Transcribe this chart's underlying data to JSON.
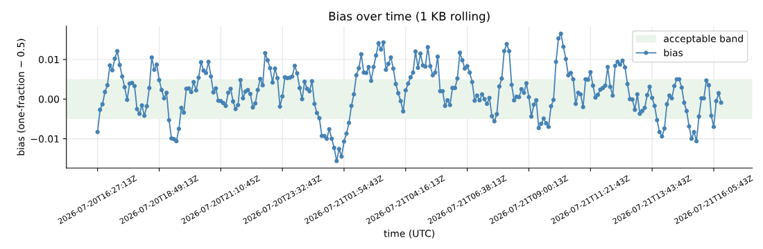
{
  "chart_data": {
    "type": "line",
    "title": "Bias over time (1 KB rolling)",
    "xlabel": "time (UTC)",
    "ylabel": "bias (one-fraction − 0.5)",
    "categories": [
      "2026-07-20T16:27:13Z",
      null,
      null,
      null,
      null,
      null,
      null,
      null,
      null,
      null,
      null,
      null,
      null,
      null,
      null,
      null,
      null,
      null,
      null,
      null,
      null,
      null,
      null,
      null,
      null,
      "2026-07-20T18:49:13Z",
      null,
      null,
      null,
      null,
      null,
      null,
      null,
      null,
      null,
      null,
      null,
      null,
      null,
      null,
      null,
      null,
      null,
      null,
      null,
      null,
      null,
      null,
      null,
      null,
      "2026-07-20T21:10:45Z",
      null,
      null,
      null,
      null,
      null,
      null,
      null,
      null,
      null,
      null,
      null,
      null,
      null,
      null,
      null,
      null,
      null,
      null,
      null,
      null,
      null,
      null,
      null,
      null,
      "2026-07-20T23:32:43Z",
      null,
      null,
      null,
      null,
      null,
      null,
      null,
      null,
      null,
      null,
      null,
      null,
      null,
      null,
      null,
      null,
      null,
      null,
      null,
      null,
      null,
      null,
      null,
      null,
      "2026-07-21T01:54:43Z",
      null,
      null,
      null,
      null,
      null,
      null,
      null,
      null,
      null,
      null,
      null,
      null,
      null,
      null,
      null,
      null,
      null,
      null,
      null,
      null,
      null,
      null,
      null,
      null,
      "2026-07-21T04:16:13Z",
      null,
      null,
      null,
      null,
      null,
      null,
      null,
      null,
      null,
      null,
      null,
      null,
      null,
      null,
      null,
      null,
      null,
      null,
      null,
      null,
      null,
      null,
      null,
      null,
      "2026-07-21T06:38:13Z",
      null,
      null,
      null,
      null,
      null,
      null,
      null,
      null,
      null,
      null,
      null,
      null,
      null,
      null,
      null,
      null,
      null,
      null,
      null,
      null,
      null,
      null,
      null,
      null,
      "2026-07-21T09:00:13Z",
      null,
      null,
      null,
      null,
      null,
      null,
      null,
      null,
      null,
      null,
      null,
      null,
      null,
      null,
      null,
      null,
      null,
      null,
      null,
      null,
      null,
      null,
      null,
      null,
      "2026-07-21T11:21:43Z",
      null,
      null,
      null,
      null,
      null,
      null,
      null,
      null,
      null,
      null,
      null,
      null,
      null,
      null,
      null,
      null,
      null,
      null,
      null,
      null,
      null,
      null,
      null,
      null,
      "2026-07-21T13:43:43Z",
      null,
      null,
      null,
      null,
      null,
      null,
      null,
      null,
      null,
      null,
      null,
      null,
      null,
      null,
      null,
      null,
      null,
      null,
      null,
      null,
      null,
      null,
      null,
      null,
      "2026-07-21T16:05:43Z",
      null,
      null,
      null
    ],
    "series": [
      {
        "name": "bias",
        "color": "#4682b4",
        "marker": "circle",
        "line_style": "solid",
        "values": [
          -0.0083,
          -0.0027,
          -0.0013,
          0.0018,
          0.0035,
          0.0085,
          0.0073,
          0.0102,
          0.0121,
          0.0086,
          0.0057,
          0.003,
          -0.0002,
          0.0039,
          0.0041,
          0.0033,
          -0.0025,
          -0.0037,
          -0.0016,
          -0.0042,
          -0.0018,
          0.0028,
          0.0105,
          0.0074,
          0.0087,
          0.0048,
          0.0023,
          0.0002,
          0.0016,
          -0.0053,
          -0.0099,
          -0.0101,
          -0.0106,
          -0.0075,
          -0.0022,
          -0.0034,
          0.0026,
          0.0027,
          0.0018,
          0.0043,
          0.0022,
          0.0054,
          0.0093,
          0.0072,
          0.0066,
          0.0094,
          0.0057,
          0.0017,
          0.0027,
          -0.0004,
          -0.0005,
          -0.001,
          -0.0017,
          0.0016,
          0.0026,
          -0.0006,
          -0.0025,
          -0.0015,
          0.0048,
          0.0002,
          0.0019,
          0.0023,
          0.0013,
          -0.0021,
          -0.0011,
          0.0023,
          0.0051,
          0.0035,
          0.0116,
          0.0098,
          0.0078,
          0.0042,
          0.0077,
          0.0053,
          -0.0019,
          0.0007,
          0.0055,
          0.0053,
          0.0054,
          0.0057,
          0.0084,
          0.0065,
          0.0028,
          0.0,
          0.0044,
          0.0026,
          0.002,
          0.0045,
          -0.0012,
          -0.0035,
          -0.0048,
          -0.0093,
          -0.0093,
          -0.01,
          -0.0076,
          -0.01,
          -0.0123,
          -0.0156,
          -0.0126,
          -0.0145,
          -0.0107,
          -0.0087,
          -0.006,
          -0.0017,
          0.0012,
          0.006,
          0.0078,
          0.0113,
          0.0067,
          0.0066,
          0.0081,
          0.0046,
          0.0081,
          0.011,
          0.0141,
          0.0125,
          0.0143,
          0.0074,
          0.0089,
          0.0105,
          0.0077,
          0.0038,
          0.0015,
          -0.0005,
          -0.0031,
          0.0022,
          0.0039,
          0.0055,
          0.0067,
          0.012,
          0.0079,
          0.0115,
          0.0085,
          0.0082,
          0.0131,
          0.0083,
          0.006,
          0.0067,
          0.0107,
          0.002,
          0.002,
          -0.0017,
          -0.0003,
          -0.0015,
          0.0028,
          0.0028,
          0.0052,
          0.0117,
          0.0098,
          0.0077,
          0.0083,
          0.0067,
          0.0043,
          -0.0004,
          0.0009,
          -0.0003,
          0.0012,
          0.0,
          -0.0012,
          0.0003,
          -0.0043,
          -0.0056,
          -0.0038,
          0.0032,
          0.0052,
          0.0121,
          0.0139,
          0.0121,
          0.0036,
          -0.0003,
          0.0006,
          0.0005,
          0.0025,
          0.0016,
          0.004,
          0.0005,
          -0.0044,
          -0.0014,
          -0.0003,
          -0.0073,
          -0.0062,
          -0.0049,
          -0.0061,
          -0.007,
          -0.0018,
          -0.0002,
          0.0094,
          0.0153,
          0.0165,
          0.0132,
          0.0101,
          0.006,
          0.0066,
          0.005,
          -0.0012,
          0.0016,
          0.0012,
          -0.002,
          0.005,
          0.0049,
          0.0068,
          0.0034,
          0.0004,
          0.0011,
          0.0024,
          0.0028,
          0.0034,
          0.0081,
          0.0031,
          0.0009,
          0.0084,
          0.0094,
          0.0087,
          0.0097,
          0.008,
          0.0038,
          0.0,
          -0.0001,
          -0.0027,
          0.0012,
          -0.0037,
          -0.003,
          -0.0022,
          0.001,
          0.0031,
          0.0003,
          -0.0017,
          -0.0053,
          -0.0083,
          -0.0094,
          -0.0074,
          -0.0013,
          0.0009,
          0.0002,
          0.0033,
          0.005,
          0.005,
          0.0029,
          -0.0009,
          -0.003,
          -0.0069,
          -0.01,
          -0.0083,
          -0.0106,
          -0.0044,
          0.0002,
          0.0002,
          0.0047,
          0.0035,
          -0.0042,
          -0.007,
          -0.0005,
          0.0015,
          -0.0009
        ]
      }
    ],
    "bands": [
      {
        "axis": "y",
        "from": -0.005,
        "to": 0.005,
        "label": "acceptable band",
        "color": "#eaf4ea"
      }
    ],
    "ylim": [
      -0.0174,
      0.0184
    ],
    "yticks": [
      {
        "value": -0.01,
        "label": "−0.01"
      },
      {
        "value": 0,
        "label": "0.00"
      },
      {
        "value": 0.01,
        "label": "0.01"
      }
    ],
    "grid": true,
    "legend": "top right"
  }
}
